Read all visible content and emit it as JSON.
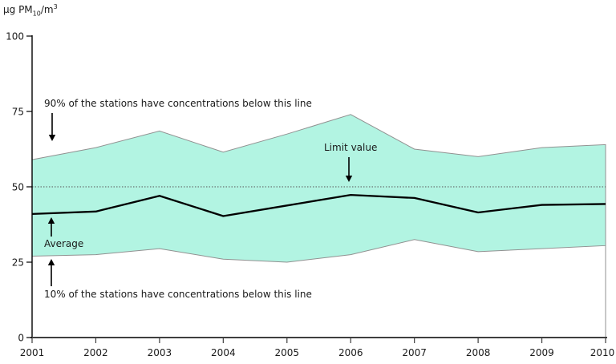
{
  "unit": {
    "prefix": "µg PM",
    "sub": "10",
    "mid": "/m",
    "sup": "3"
  },
  "chart_data": {
    "type": "area",
    "title": "",
    "ylabel": "µg PM10/m3",
    "xlabel": "",
    "x": [
      2001,
      2002,
      2003,
      2004,
      2005,
      2006,
      2007,
      2008,
      2009,
      2010
    ],
    "series": [
      {
        "name": "p90",
        "label": "90% of the stations have concentrations below this line",
        "values": [
          59,
          63,
          68.5,
          61.5,
          67.5,
          74,
          62.5,
          60,
          63,
          64
        ]
      },
      {
        "name": "average",
        "label": "Average",
        "values": [
          41,
          41.8,
          47,
          40.3,
          43.8,
          47.3,
          46.3,
          41.5,
          44,
          44.3
        ]
      },
      {
        "name": "p10",
        "label": "10% of the stations have concentrations below this line",
        "values": [
          27,
          27.5,
          29.5,
          26,
          25,
          27.5,
          32.5,
          28.5,
          29.5,
          30.5
        ]
      }
    ],
    "limit": {
      "label": "Limit value",
      "value": 50
    },
    "ylim": [
      0,
      100
    ],
    "yticks": [
      0,
      25,
      50,
      75,
      100
    ],
    "xticks": [
      2001,
      2002,
      2003,
      2004,
      2005,
      2006,
      2007,
      2008,
      2009,
      2010
    ],
    "grid": false,
    "legend_position": "none (arrow annotations on chart)",
    "colors": {
      "band_fill": "#b2f4e2",
      "band_stroke": "#919191",
      "average_line": "#000000",
      "limit_line": "#555555",
      "axis": "#000000",
      "x_axis": "#3f3f3f"
    }
  }
}
